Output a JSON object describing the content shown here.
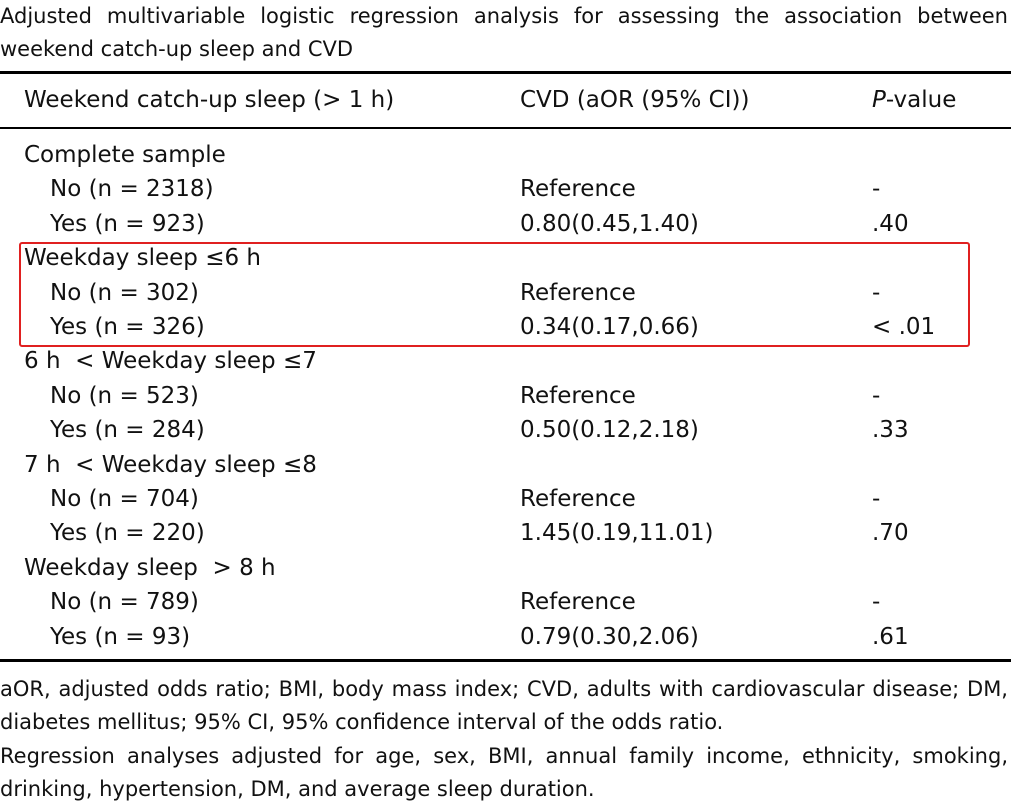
{
  "caption": "Adjusted multivariable logistic regression analysis for assessing the association between weekend catch-up sleep and CVD",
  "header": {
    "group": "Weekend catch-up sleep (> 1 h)",
    "estimate": "CVD (aOR (95% CI))",
    "p_value": {
      "italic": "P",
      "rest": "-value"
    }
  },
  "groups": [
    {
      "label": "Complete sample",
      "rows": [
        [
          "No (n = 2318)",
          "Reference",
          "-"
        ],
        [
          "Yes (n = 923)",
          "0.80(0.45,1.40)",
          ".40"
        ]
      ]
    },
    {
      "label": "Weekday sleep ≤6 h",
      "rows": [
        [
          "No (n = 302)",
          "Reference",
          "-"
        ],
        [
          "Yes (n = 326)",
          "0.34(0.17,0.66)",
          "< .01"
        ]
      ]
    },
    {
      "label": "6 h  < Weekday sleep ≤7",
      "rows": [
        [
          "No (n = 523)",
          "Reference",
          "-"
        ],
        [
          "Yes (n = 284)",
          "0.50(0.12,2.18)",
          ".33"
        ]
      ]
    },
    {
      "label": "7 h  < Weekday sleep ≤8",
      "rows": [
        [
          "No (n = 704)",
          "Reference",
          "-"
        ],
        [
          "Yes (n = 220)",
          "1.45(0.19,11.01)",
          ".70"
        ]
      ]
    },
    {
      "label": "Weekday sleep  > 8 h",
      "rows": [
        [
          "No (n = 789)",
          "Reference",
          "-"
        ],
        [
          "Yes (n = 93)",
          "0.79(0.30,2.06)",
          ".61"
        ]
      ]
    }
  ],
  "footnotes": [
    "aOR, adjusted odds ratio; BMI, body mass index; CVD, adults with cardiovascular disease; DM, diabetes mellitus; 95% CI, 95% confidence interval of the odds ratio.",
    "Regression analyses adjusted for age, sex, BMI, annual family income, ethnicity, smoking, drinking, hypertension, DM, and average sleep duration."
  ]
}
